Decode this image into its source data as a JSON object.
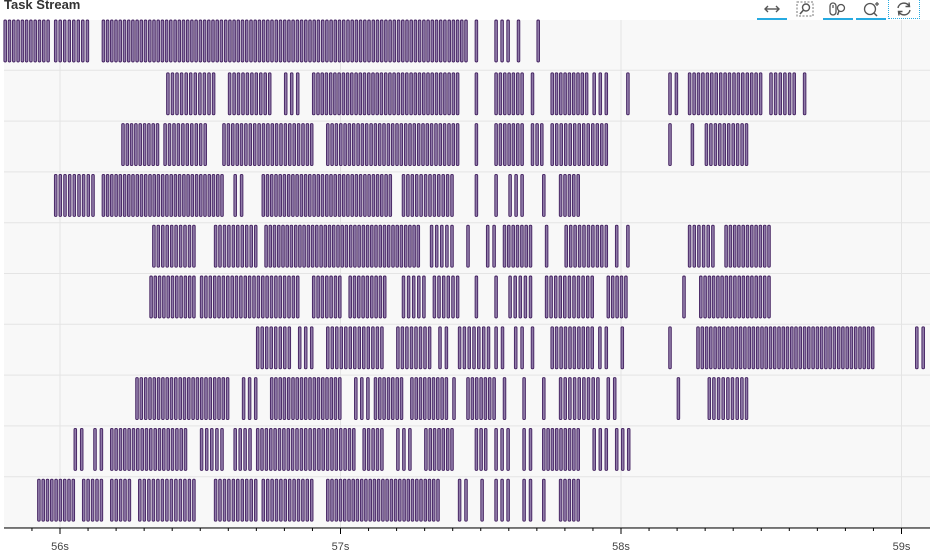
{
  "title": "Task Stream",
  "toolbar": {
    "tools": [
      {
        "icon": "pan-icon",
        "active": true
      },
      {
        "icon": "zoom-icon",
        "active": false
      },
      {
        "icon": "wheel-zoom-icon",
        "active": true
      },
      {
        "icon": "box-zoom-icon",
        "active": true
      },
      {
        "icon": "reset-icon",
        "active": false
      }
    ]
  },
  "colors": {
    "bar_fill": "#8f7aa8",
    "bar_stroke": "#42205f",
    "grid": "#e4e4e4",
    "axis": "#000000",
    "background": "#f8f8f8"
  },
  "chart_data": {
    "type": "timeline",
    "xlabel": "",
    "ylabel": "",
    "xlim": [
      55.8,
      59.1
    ],
    "xticks": [
      56,
      57,
      58,
      59
    ],
    "xtick_labels": [
      "56s",
      "57s",
      "58s",
      "59s"
    ],
    "grid": true,
    "workers": [
      {
        "spans": [
          [
            55.8,
            55.96
          ],
          [
            55.98,
            56.1
          ],
          [
            56.15,
            57.45
          ],
          [
            57.48,
            57.5
          ],
          [
            57.55,
            57.6
          ],
          [
            57.63,
            57.65
          ],
          [
            57.7,
            57.72
          ]
        ]
      },
      {
        "spans": [
          [
            56.38,
            56.55
          ],
          [
            56.6,
            56.75
          ],
          [
            56.8,
            56.85
          ],
          [
            56.9,
            57.42
          ],
          [
            57.48,
            57.5
          ],
          [
            57.55,
            57.65
          ],
          [
            57.68,
            57.7
          ],
          [
            57.75,
            57.88
          ],
          [
            57.9,
            57.95
          ],
          [
            58.02,
            58.04
          ],
          [
            58.17,
            58.2
          ],
          [
            58.24,
            58.5
          ],
          [
            58.53,
            58.62
          ],
          [
            58.65,
            58.67
          ]
        ]
      },
      {
        "spans": [
          [
            56.22,
            56.35
          ],
          [
            56.37,
            56.52
          ],
          [
            56.58,
            56.9
          ],
          [
            56.95,
            57.42
          ],
          [
            57.48,
            57.5
          ],
          [
            57.55,
            57.65
          ],
          [
            57.68,
            57.72
          ],
          [
            57.75,
            57.95
          ],
          [
            58.17,
            58.19
          ],
          [
            58.25,
            58.27
          ],
          [
            58.3,
            58.45
          ]
        ]
      },
      {
        "spans": [
          [
            55.98,
            56.12
          ],
          [
            56.15,
            56.58
          ],
          [
            56.62,
            56.65
          ],
          [
            56.72,
            57.18
          ],
          [
            57.22,
            57.4
          ],
          [
            57.48,
            57.5
          ],
          [
            57.55,
            57.57
          ],
          [
            57.6,
            57.65
          ],
          [
            57.72,
            57.74
          ],
          [
            57.78,
            57.85
          ]
        ]
      },
      {
        "spans": [
          [
            56.33,
            56.48
          ],
          [
            56.55,
            56.7
          ],
          [
            56.73,
            57.28
          ],
          [
            57.32,
            57.4
          ],
          [
            57.45,
            57.47
          ],
          [
            57.52,
            57.55
          ],
          [
            57.58,
            57.68
          ],
          [
            57.73,
            57.75
          ],
          [
            57.8,
            57.95
          ],
          [
            57.98,
            58.0
          ],
          [
            58.02,
            58.04
          ],
          [
            58.24,
            58.33
          ],
          [
            58.37,
            58.53
          ]
        ]
      },
      {
        "spans": [
          [
            56.32,
            56.48
          ],
          [
            56.5,
            56.85
          ],
          [
            56.9,
            57.0
          ],
          [
            57.03,
            57.16
          ],
          [
            57.22,
            57.3
          ],
          [
            57.33,
            57.42
          ],
          [
            57.48,
            57.5
          ],
          [
            57.55,
            57.57
          ],
          [
            57.6,
            57.68
          ],
          [
            57.73,
            57.9
          ],
          [
            57.95,
            58.02
          ],
          [
            58.22,
            58.24
          ],
          [
            58.28,
            58.53
          ]
        ]
      },
      {
        "spans": [
          [
            56.7,
            56.82
          ],
          [
            56.85,
            56.9
          ],
          [
            56.95,
            57.15
          ],
          [
            57.2,
            57.32
          ],
          [
            57.35,
            57.38
          ],
          [
            57.42,
            57.53
          ],
          [
            57.55,
            57.58
          ],
          [
            57.62,
            57.65
          ],
          [
            57.68,
            57.7
          ],
          [
            57.75,
            57.9
          ],
          [
            57.92,
            57.95
          ],
          [
            58.0,
            58.02
          ],
          [
            58.17,
            58.19
          ],
          [
            58.27,
            58.9
          ],
          [
            59.05,
            59.08
          ]
        ]
      },
      {
        "spans": [
          [
            56.27,
            56.6
          ],
          [
            56.65,
            56.7
          ],
          [
            56.75,
            57.0
          ],
          [
            57.05,
            57.1
          ],
          [
            57.12,
            57.22
          ],
          [
            57.25,
            57.38
          ],
          [
            57.4,
            57.42
          ],
          [
            57.45,
            57.55
          ],
          [
            57.58,
            57.6
          ],
          [
            57.65,
            57.67
          ],
          [
            57.72,
            57.74
          ],
          [
            57.78,
            57.92
          ],
          [
            57.95,
            57.98
          ],
          [
            58.2,
            58.22
          ],
          [
            58.31,
            58.45
          ]
        ]
      },
      {
        "spans": [
          [
            56.05,
            56.08
          ],
          [
            56.12,
            56.15
          ],
          [
            56.18,
            56.45
          ],
          [
            56.5,
            56.58
          ],
          [
            56.62,
            56.68
          ],
          [
            56.7,
            57.05
          ],
          [
            57.08,
            57.15
          ],
          [
            57.2,
            57.25
          ],
          [
            57.3,
            57.4
          ],
          [
            57.48,
            57.52
          ],
          [
            57.55,
            57.6
          ],
          [
            57.65,
            57.68
          ],
          [
            57.72,
            57.85
          ],
          [
            57.9,
            57.95
          ],
          [
            57.98,
            58.03
          ]
        ]
      },
      {
        "spans": [
          [
            55.92,
            56.05
          ],
          [
            56.08,
            56.15
          ],
          [
            56.18,
            56.25
          ],
          [
            56.28,
            56.48
          ],
          [
            56.55,
            56.7
          ],
          [
            56.72,
            56.9
          ],
          [
            56.95,
            57.35
          ],
          [
            57.42,
            57.45
          ],
          [
            57.5,
            57.52
          ],
          [
            57.55,
            57.6
          ],
          [
            57.65,
            57.68
          ],
          [
            57.72,
            57.74
          ],
          [
            57.78,
            57.85
          ]
        ]
      }
    ]
  }
}
